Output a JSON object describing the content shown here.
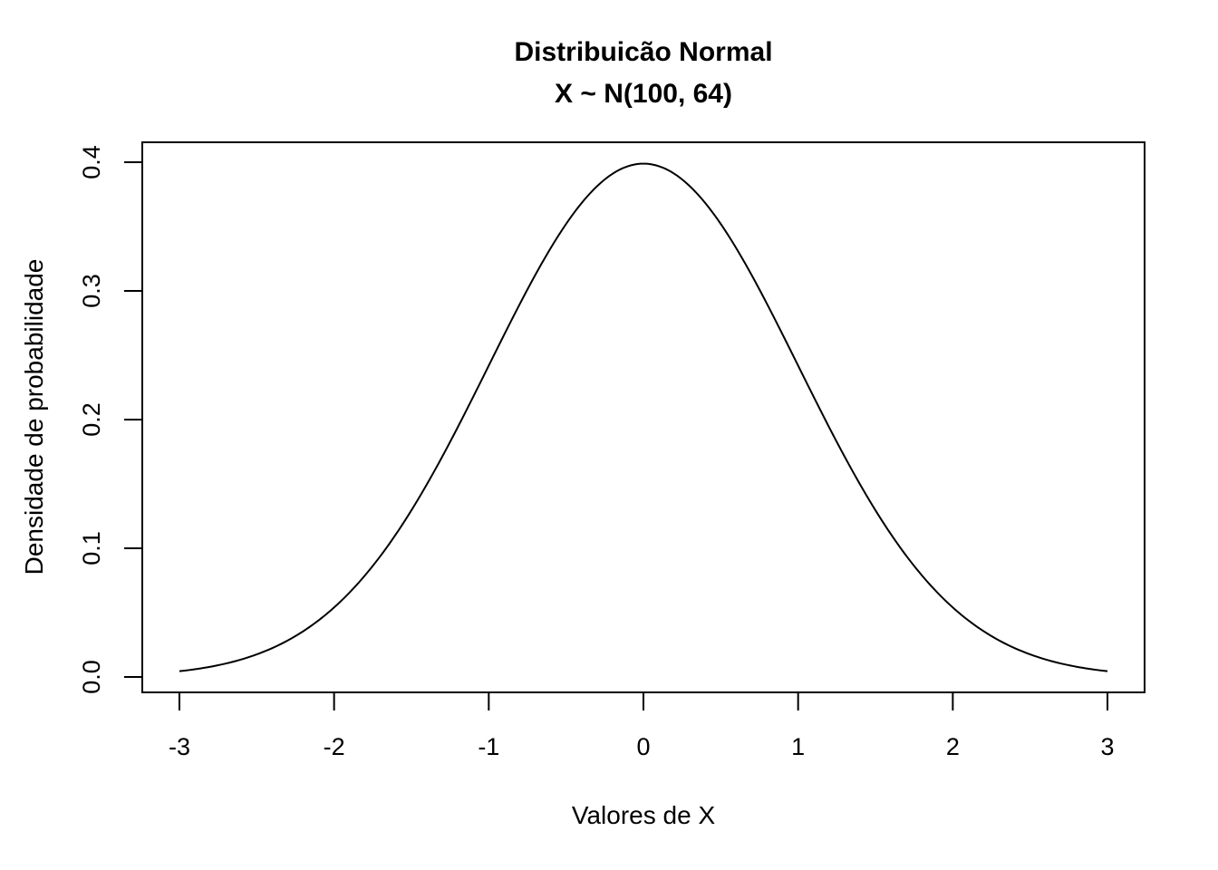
{
  "chart_data": {
    "type": "line",
    "title": "Distribuicão Normal",
    "subtitle": "X ~ N(100, 64)",
    "xlabel": "Valores de X",
    "ylabel": "Densidade de probabilidade",
    "xlim": [
      -3.24,
      3.24
    ],
    "ylim": [
      -0.012,
      0.4155
    ],
    "x_ticks": [
      "-3",
      "-2",
      "-1",
      "0",
      "1",
      "2",
      "3"
    ],
    "y_ticks": [
      "0.0",
      "0.1",
      "0.2",
      "0.3",
      "0.4"
    ],
    "grid": false,
    "legend": "none",
    "line_color": "#000000",
    "series": [
      {
        "x": [
          -3.0,
          -2.75,
          -2.5,
          -2.25,
          -2.0,
          -1.75,
          -1.5,
          -1.25,
          -1.0,
          -0.75,
          -0.5,
          -0.25,
          0.0,
          0.25,
          0.5,
          0.75,
          1.0,
          1.25,
          1.5,
          1.75,
          2.0,
          2.25,
          2.5,
          2.75,
          3.0
        ],
        "y": [
          0.0044,
          0.0091,
          0.0175,
          0.0317,
          0.054,
          0.0863,
          0.1295,
          0.1826,
          0.242,
          0.3011,
          0.3521,
          0.3867,
          0.3989,
          0.3867,
          0.3521,
          0.3011,
          0.242,
          0.1826,
          0.1295,
          0.0863,
          0.054,
          0.0317,
          0.0175,
          0.0091,
          0.0044
        ]
      }
    ]
  }
}
